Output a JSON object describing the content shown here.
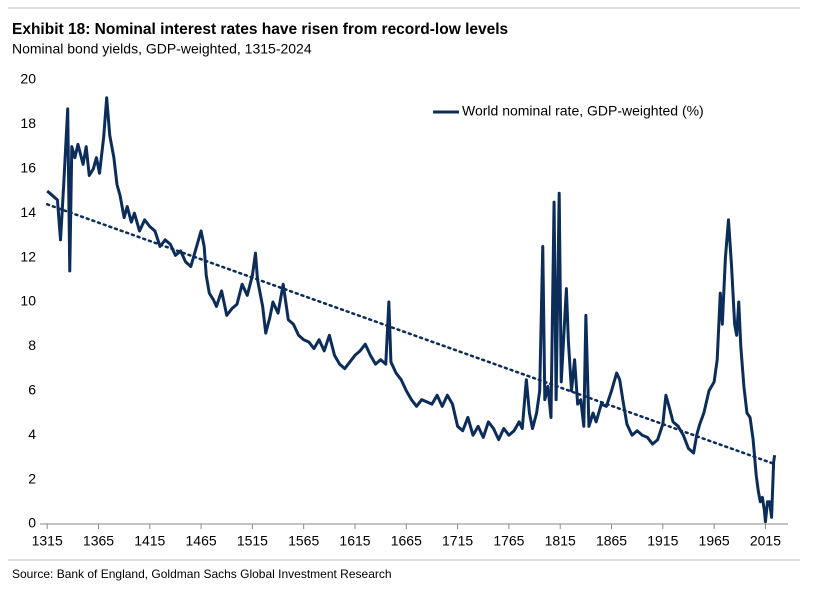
{
  "chart_data": {
    "type": "line",
    "title": "Exhibit 18: Nominal interest rates have risen from record-low levels",
    "subtitle": "Nominal bond yields, GDP-weighted, 1315-2024",
    "source": "Source: Bank of England, Goldman Sachs Global Investment Research",
    "legend": "upper right",
    "xlim": [
      1308,
      2037
    ],
    "ylim": [
      0,
      20
    ],
    "xticks": [
      1315,
      1365,
      1415,
      1465,
      1515,
      1565,
      1615,
      1665,
      1715,
      1765,
      1815,
      1865,
      1915,
      1965,
      2015
    ],
    "yticks": [
      0,
      2,
      4,
      6,
      8,
      10,
      12,
      14,
      16,
      18,
      20
    ],
    "grid": false,
    "series": [
      {
        "name": "World nominal rate, GDP-weighted (%)",
        "color": "#0c2d5a",
        "line_style": "solid",
        "x": [
          1315,
          1320,
          1325,
          1328,
          1331,
          1335,
          1337,
          1339,
          1342,
          1345,
          1350,
          1353,
          1356,
          1360,
          1363,
          1366,
          1370,
          1373,
          1376,
          1380,
          1383,
          1386,
          1390,
          1393,
          1397,
          1400,
          1405,
          1410,
          1415,
          1420,
          1425,
          1430,
          1435,
          1440,
          1445,
          1450,
          1455,
          1460,
          1465,
          1468,
          1470,
          1473,
          1477,
          1480,
          1485,
          1490,
          1495,
          1500,
          1505,
          1510,
          1515,
          1518,
          1520,
          1525,
          1528,
          1532,
          1535,
          1540,
          1545,
          1550,
          1555,
          1560,
          1565,
          1570,
          1575,
          1580,
          1585,
          1590,
          1595,
          1600,
          1605,
          1610,
          1615,
          1620,
          1625,
          1630,
          1635,
          1640,
          1645,
          1648,
          1650,
          1655,
          1660,
          1665,
          1670,
          1675,
          1680,
          1685,
          1690,
          1695,
          1700,
          1705,
          1710,
          1715,
          1720,
          1725,
          1730,
          1735,
          1740,
          1745,
          1750,
          1755,
          1760,
          1765,
          1770,
          1775,
          1778,
          1782,
          1785,
          1788,
          1792,
          1795,
          1798,
          1800,
          1803,
          1806,
          1809,
          1811,
          1814,
          1816,
          1819,
          1821,
          1823,
          1826,
          1829,
          1832,
          1835,
          1838,
          1840,
          1843,
          1847,
          1850,
          1855,
          1860,
          1865,
          1870,
          1873,
          1876,
          1880,
          1885,
          1890,
          1895,
          1900,
          1905,
          1910,
          1915,
          1918,
          1921,
          1925,
          1930,
          1935,
          1940,
          1945,
          1948,
          1951,
          1955,
          1960,
          1965,
          1968,
          1971,
          1973,
          1976,
          1979,
          1982,
          1985,
          1987,
          1989,
          1991,
          1994,
          1997,
          2000,
          2003,
          2006,
          2008,
          2010,
          2012,
          2014,
          2015,
          2017,
          2019,
          2021,
          2023,
          2024
        ],
        "values": [
          15,
          14.8,
          14.6,
          12.8,
          15.2,
          18.7,
          11.4,
          17,
          16.5,
          17.1,
          16.2,
          17,
          15.7,
          16,
          16.5,
          15.8,
          17.4,
          19.2,
          17.5,
          16.5,
          15.3,
          14.8,
          13.8,
          14.3,
          13.6,
          14,
          13.2,
          13.7,
          13.4,
          13.2,
          12.5,
          12.8,
          12.6,
          12.1,
          12.3,
          11.8,
          11.6,
          12.4,
          13.2,
          12.5,
          11.2,
          10.4,
          10.1,
          9.8,
          10.5,
          9.4,
          9.7,
          9.9,
          10.8,
          10.3,
          11.2,
          12.2,
          11,
          9.8,
          8.6,
          9.3,
          10,
          9.5,
          10.8,
          9.2,
          9,
          8.5,
          8.3,
          8.2,
          7.9,
          8.3,
          7.8,
          8.5,
          7.6,
          7.2,
          7,
          7.3,
          7.6,
          7.8,
          8.1,
          7.6,
          7.2,
          7.4,
          7.2,
          10,
          7.3,
          6.8,
          6.5,
          6,
          5.6,
          5.3,
          5.6,
          5.5,
          5.4,
          5.8,
          5.3,
          5.8,
          5.4,
          4.4,
          4.2,
          4.8,
          4,
          4.4,
          3.9,
          4.6,
          4.3,
          3.8,
          4.3,
          4,
          4.2,
          4.6,
          4.3,
          6.5,
          5,
          4.3,
          5,
          6,
          12.5,
          5.6,
          6.2,
          4.8,
          14.5,
          5.6,
          14.9,
          6.4,
          8.9,
          10.6,
          8.2,
          6,
          7.4,
          5.4,
          5.6,
          4.4,
          9.4,
          4.4,
          5,
          4.6,
          5.4,
          5.3,
          6,
          6.8,
          6.5,
          5.6,
          4.5,
          4,
          4.2,
          4,
          3.9,
          3.6,
          3.8,
          4.5,
          5.8,
          5.3,
          4.6,
          4.4,
          4,
          3.4,
          3.2,
          4,
          4.5,
          5,
          6,
          6.4,
          7.4,
          10.4,
          9,
          12,
          13.7,
          11.6,
          9,
          8.5,
          10,
          8,
          6.2,
          5,
          4.8,
          3.8,
          2.2,
          1.5,
          1,
          1.2,
          0.6,
          0.1,
          1,
          1,
          0.3,
          2.8,
          3.1
        ]
      },
      {
        "color": "#0c2d5a",
        "line_style": "dotted",
        "x": [
          1315,
          2024
        ],
        "values": [
          14.4,
          2.7
        ]
      }
    ]
  }
}
